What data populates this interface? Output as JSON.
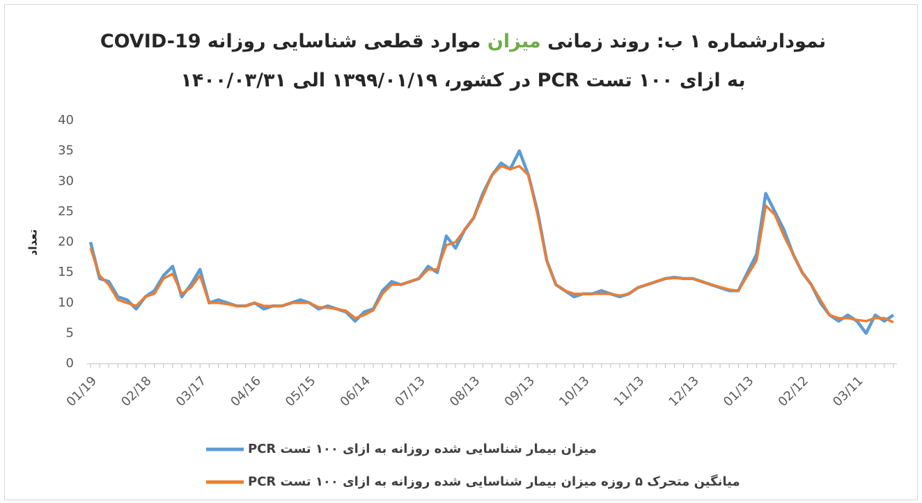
{
  "chart_data": {
    "type": "line",
    "title": [
      "نمودارشماره ۱ ب:  روند زمانی ",
      "میزان",
      " موارد قطعی شناسایی روزانه COVID-19 به ازای ۱۰۰ تست PCR در کشور، ۱۳۹۹/۰۱/۱۹ الی ۱۴۰۰/۰۳/۳۱"
    ],
    "title_highlight_color": "#70ad47",
    "y_label": "تعداد",
    "ylim": [
      0,
      40
    ],
    "yticks": [
      0,
      5,
      10,
      15,
      20,
      25,
      30,
      35,
      40
    ],
    "grid": false,
    "categories": [
      "01/19",
      null,
      null,
      null,
      null,
      null,
      "02/18",
      null,
      null,
      null,
      null,
      null,
      "03/17",
      null,
      null,
      null,
      null,
      null,
      "04/16",
      null,
      null,
      null,
      null,
      null,
      "05/15",
      null,
      null,
      null,
      null,
      null,
      "06/14",
      null,
      null,
      null,
      null,
      null,
      "07/13",
      null,
      null,
      null,
      null,
      null,
      "08/13",
      null,
      null,
      null,
      null,
      null,
      "09/13",
      null,
      null,
      null,
      null,
      null,
      "10/13",
      null,
      null,
      null,
      null,
      null,
      "11/13",
      null,
      null,
      null,
      null,
      null,
      "12/13",
      null,
      null,
      null,
      null,
      null,
      "01/13",
      null,
      null,
      null,
      null,
      null,
      "02/12",
      null,
      null,
      null,
      null,
      null,
      "03/11",
      null,
      null,
      null,
      null
    ],
    "series": [
      {
        "name": "میزان بیمار شناسایی شده روزانه به ازای ۱۰۰ تست PCR",
        "color": "#5b9bd5",
        "values": [
          20,
          14,
          13.5,
          11,
          10.5,
          9,
          11,
          12,
          14.5,
          16,
          11,
          13,
          15.5,
          10,
          10.5,
          10,
          9.5,
          9.5,
          10,
          9,
          9.5,
          9.5,
          10,
          10.5,
          10,
          9,
          9.5,
          9,
          8.5,
          7,
          8.5,
          9,
          12,
          13.5,
          13,
          13.5,
          14,
          16,
          15,
          21,
          19,
          22,
          24,
          28,
          31,
          33,
          32,
          35,
          31,
          25,
          17,
          13,
          12,
          11,
          11.5,
          11.5,
          12,
          11.5,
          11,
          11.5,
          12.5,
          13,
          13.5,
          14,
          14.2,
          14,
          14,
          13.5,
          13,
          12.5,
          12,
          12,
          15,
          18,
          28,
          25,
          22,
          18,
          15,
          13,
          10,
          8,
          7,
          8,
          7,
          5,
          8,
          7,
          8
        ]
      },
      {
        "name": "میانگین متحرک ۵ روزه میزان بیمار شناسایی شده روزانه به ازای ۱۰۰ تست PCR",
        "color": "#ed7d31",
        "values": [
          19,
          14.5,
          13,
          10.5,
          10,
          9.5,
          11,
          11.5,
          14,
          14.8,
          11.5,
          12.5,
          14.5,
          10,
          10,
          9.8,
          9.5,
          9.5,
          10,
          9.5,
          9.5,
          9.5,
          10,
          10,
          10,
          9.3,
          9.2,
          9,
          8.7,
          7.5,
          8,
          8.8,
          11.5,
          13,
          13,
          13.5,
          14,
          15.5,
          15.5,
          19.5,
          20,
          22,
          24,
          27.5,
          31,
          32.5,
          32,
          32.5,
          31,
          24.5,
          17,
          13,
          12,
          11.5,
          11.5,
          11.5,
          11.5,
          11.5,
          11.2,
          11.5,
          12.5,
          13,
          13.5,
          14,
          14.1,
          14,
          14,
          13.5,
          13,
          12.6,
          12.2,
          12,
          14.5,
          17,
          26,
          24.5,
          21,
          18,
          15,
          13,
          10.5,
          8,
          7.5,
          7.5,
          7.2,
          7,
          7.5,
          7.5,
          6.8
        ]
      }
    ]
  }
}
